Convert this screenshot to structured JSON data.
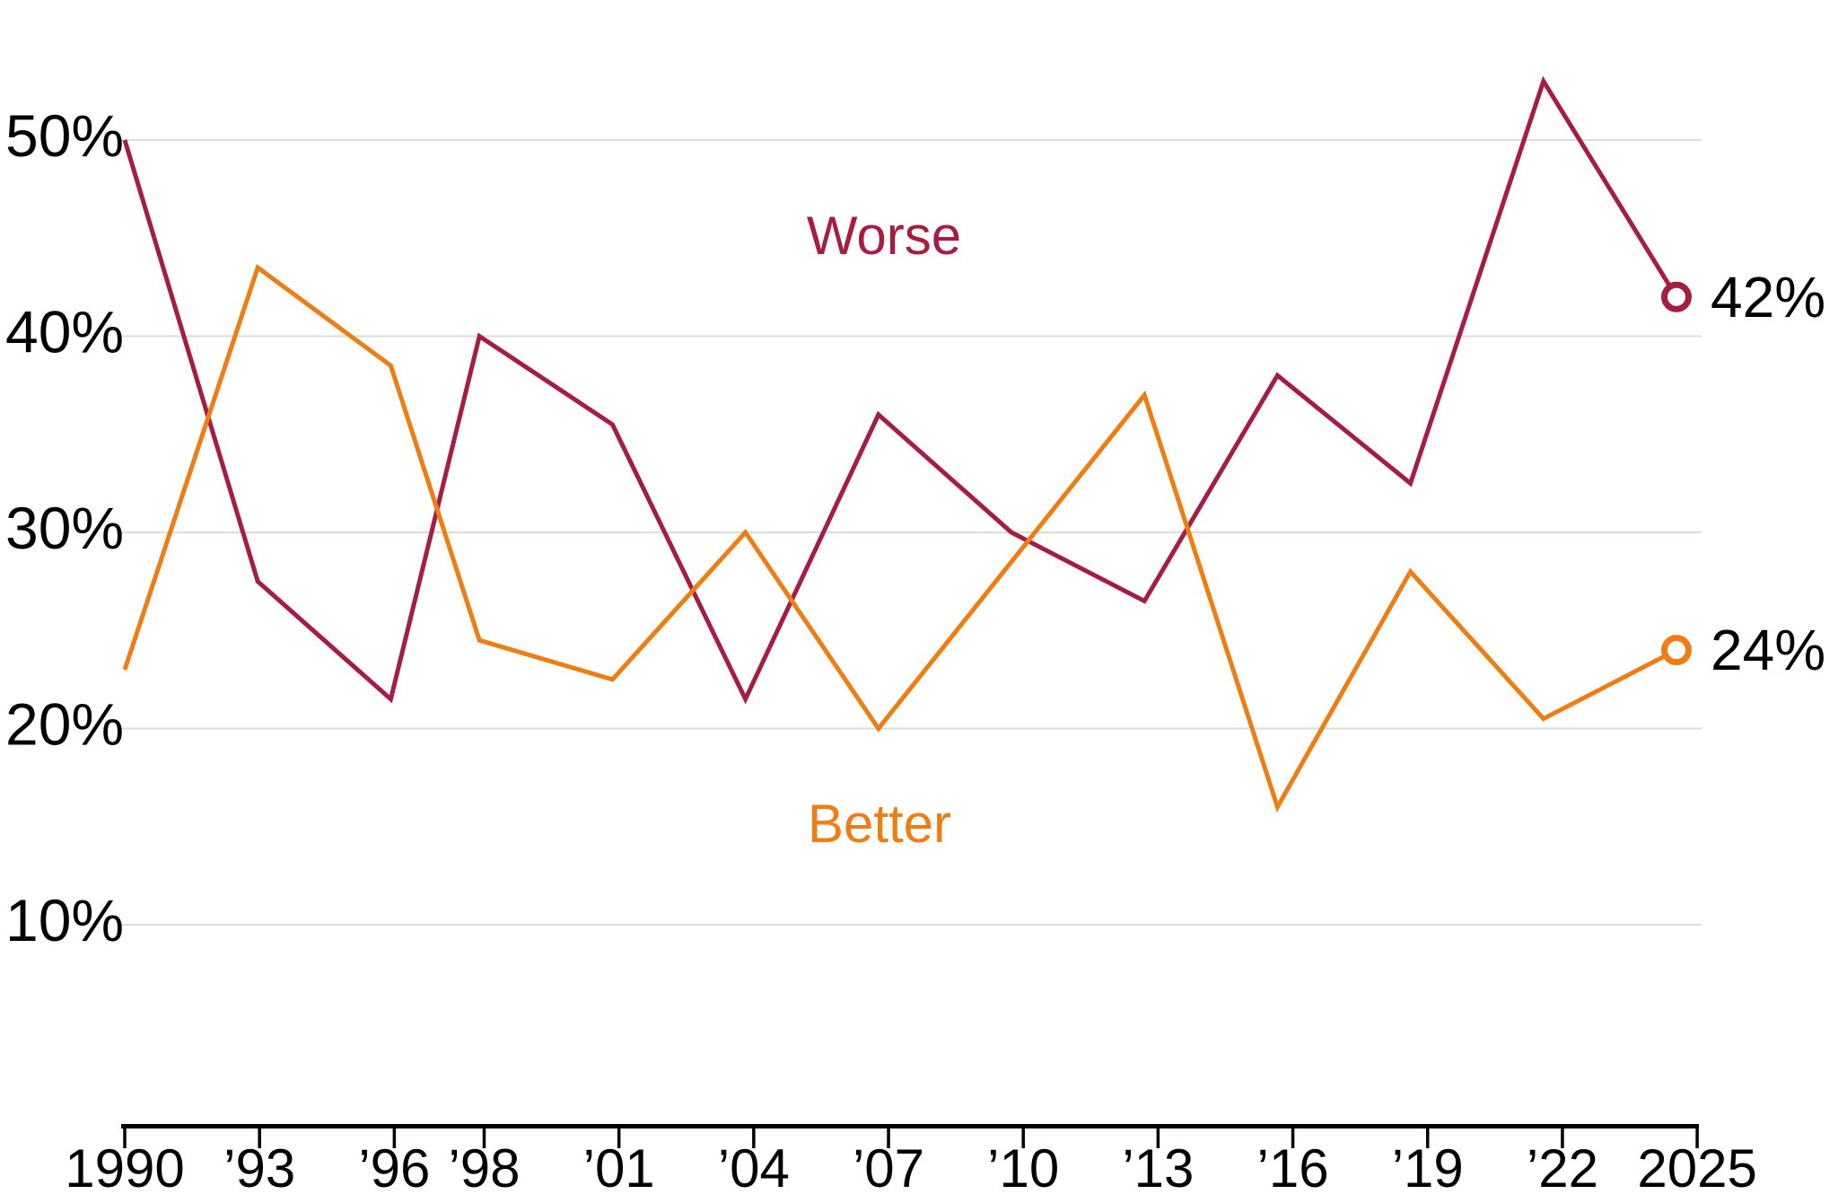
{
  "chart_data": {
    "type": "line",
    "title": "",
    "xlabel": "",
    "ylabel": "",
    "x": [
      1990,
      1993,
      1996,
      1998,
      2001,
      2004,
      2007,
      2010,
      2013,
      2016,
      2019,
      2022,
      2025
    ],
    "x_tick_labels": [
      "1990",
      "’93",
      "’96",
      "’98",
      "’01",
      "’04",
      "’07",
      "’10",
      "’13",
      "’16",
      "’19",
      "’22",
      "2025"
    ],
    "y_ticks": [
      {
        "value": 50,
        "label": "50%"
      },
      {
        "value": 40,
        "label": "40%"
      },
      {
        "value": 30,
        "label": "30%"
      },
      {
        "value": 20,
        "label": "20%"
      },
      {
        "value": 10,
        "label": "10%"
      }
    ],
    "xlim": [
      1990,
      2025
    ],
    "ylim": [
      0,
      55
    ],
    "grid": "horizontal",
    "legend": "inline-annotations",
    "series": [
      {
        "name": "worse",
        "label": "Worse",
        "color": "#A51E42",
        "end_label": "42%",
        "values": [
          50,
          27.5,
          21.5,
          40,
          35.5,
          21.5,
          36,
          30,
          26.5,
          38,
          32.5,
          53,
          42
        ]
      },
      {
        "name": "better",
        "label": "Better",
        "color": "#EE7D13",
        "end_label": "24%",
        "values": [
          23,
          43.5,
          38.5,
          24.5,
          22.5,
          30,
          20,
          28.5,
          37,
          16,
          28,
          20.5,
          24
        ]
      }
    ]
  },
  "colors": {
    "background": "#ffffff",
    "grid": "#dcdcdd",
    "axis": "#000000",
    "tick_text": "#000000",
    "end_label_text": "#000000"
  }
}
